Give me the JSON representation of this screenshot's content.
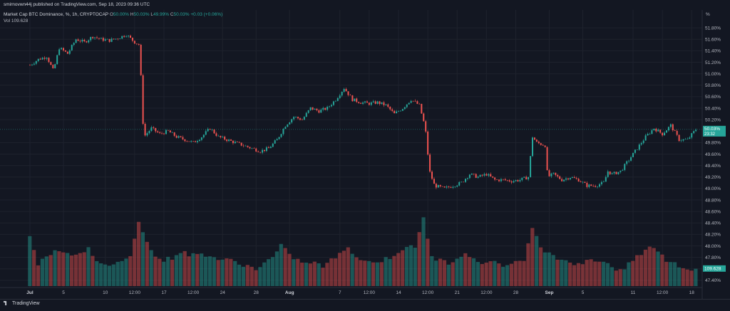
{
  "header": {
    "published": "smirnovwn44j published on TradingView.com, Sep 18, 2023 09:36 UTC"
  },
  "legend": {
    "title": "Market Cap BTC Dominance, %, 1h, CRYPTOCAP",
    "o_label": "O",
    "o_value": "50.00%",
    "h_label": "H",
    "h_value": "50.03%",
    "l_label": "L",
    "l_value": "49.99%",
    "c_label": "C",
    "c_value": "50.03%",
    "change": "+0.03 (+0.06%)",
    "vol_label": "Vol",
    "vol_value": "109.628"
  },
  "price_axis": {
    "unit": "%"
  },
  "footer": {
    "brand": "TradingView"
  },
  "colors": {
    "up": "#26a69a",
    "down": "#ef5350",
    "background": "#131722",
    "grid": "#1e222d",
    "axis_text": "#b2b5be"
  },
  "chart_data": {
    "type": "line",
    "title": "Market Cap BTC Dominance, %, 1h, CRYPTOCAP",
    "xlabel": "",
    "ylabel": "%",
    "ylim": [
      47.3,
      51.9
    ],
    "yticks": [
      "51.80%",
      "51.60%",
      "51.40%",
      "51.20%",
      "51.00%",
      "50.80%",
      "50.60%",
      "50.40%",
      "50.20%",
      "49.80%",
      "49.60%",
      "49.40%",
      "49.20%",
      "49.00%",
      "48.80%",
      "48.60%",
      "48.40%",
      "48.20%",
      "48.00%",
      "47.80%",
      "47.60%",
      "47.40%"
    ],
    "xticks": [
      {
        "label": "Jul",
        "day": 0,
        "bold": true
      },
      {
        "label": "5",
        "day": 4
      },
      {
        "label": "10",
        "day": 9
      },
      {
        "label": "12:00",
        "day": 12.5
      },
      {
        "label": "17",
        "day": 16
      },
      {
        "label": "12:00",
        "day": 19.5
      },
      {
        "label": "24",
        "day": 23
      },
      {
        "label": "28",
        "day": 27
      },
      {
        "label": "Aug",
        "day": 31,
        "bold": true
      },
      {
        "label": "7",
        "day": 37
      },
      {
        "label": "12:00",
        "day": 40.5
      },
      {
        "label": "14",
        "day": 44
      },
      {
        "label": "12:00",
        "day": 47.5
      },
      {
        "label": "21",
        "day": 51
      },
      {
        "label": "12:00",
        "day": 54.5
      },
      {
        "label": "28",
        "day": 58
      },
      {
        "label": "Sep",
        "day": 62,
        "bold": true
      },
      {
        "label": "5",
        "day": 66
      },
      {
        "label": "11",
        "day": 72
      },
      {
        "label": "12:00",
        "day": 75.5
      },
      {
        "label": "18",
        "day": 79
      }
    ],
    "last_price": "50.03%",
    "last_price_countdown": "23:32",
    "last_volume": "109.628",
    "price_anchors": [
      [
        0,
        51.15
      ],
      [
        1,
        51.25
      ],
      [
        2,
        51.3
      ],
      [
        2.8,
        51.05
      ],
      [
        3.5,
        51.45
      ],
      [
        4.5,
        51.35
      ],
      [
        5.5,
        51.6
      ],
      [
        6.5,
        51.55
      ],
      [
        7.5,
        51.65
      ],
      [
        8.5,
        51.6
      ],
      [
        9.5,
        51.58
      ],
      [
        10.5,
        51.62
      ],
      [
        11.5,
        51.68
      ],
      [
        12.5,
        51.55
      ],
      [
        13.1,
        51.5
      ],
      [
        13.4,
        50.4
      ],
      [
        13.6,
        49.9
      ],
      [
        14.5,
        50.05
      ],
      [
        15.5,
        49.95
      ],
      [
        16.5,
        50.0
      ],
      [
        17.5,
        49.9
      ],
      [
        18.5,
        49.85
      ],
      [
        19.5,
        49.8
      ],
      [
        20.5,
        49.9
      ],
      [
        21.5,
        50.05
      ],
      [
        22.5,
        49.9
      ],
      [
        23.5,
        49.85
      ],
      [
        24.5,
        49.8
      ],
      [
        25.5,
        49.75
      ],
      [
        26.5,
        49.7
      ],
      [
        27.5,
        49.65
      ],
      [
        28.5,
        49.7
      ],
      [
        29.5,
        49.85
      ],
      [
        30.5,
        50.1
      ],
      [
        31.5,
        50.25
      ],
      [
        32.5,
        50.2
      ],
      [
        33.5,
        50.4
      ],
      [
        34.5,
        50.35
      ],
      [
        35.5,
        50.4
      ],
      [
        36.5,
        50.55
      ],
      [
        37.5,
        50.75
      ],
      [
        38.5,
        50.55
      ],
      [
        39.5,
        50.5
      ],
      [
        40.5,
        50.48
      ],
      [
        41.5,
        50.5
      ],
      [
        42.5,
        50.45
      ],
      [
        43.5,
        50.3
      ],
      [
        44.5,
        50.4
      ],
      [
        45.5,
        50.55
      ],
      [
        46.5,
        50.45
      ],
      [
        47.2,
        50.05
      ],
      [
        47.7,
        49.3
      ],
      [
        48.3,
        49.05
      ],
      [
        49.5,
        49.0
      ],
      [
        50.5,
        49.05
      ],
      [
        51.5,
        49.1
      ],
      [
        52.5,
        49.25
      ],
      [
        53.5,
        49.2
      ],
      [
        54.5,
        49.25
      ],
      [
        55.5,
        49.15
      ],
      [
        56.5,
        49.15
      ],
      [
        57.5,
        49.13
      ],
      [
        58.5,
        49.15
      ],
      [
        59.5,
        49.2
      ],
      [
        60.0,
        49.9
      ],
      [
        60.5,
        49.8
      ],
      [
        61.5,
        49.75
      ],
      [
        61.8,
        49.2
      ],
      [
        62.5,
        49.25
      ],
      [
        63.5,
        49.15
      ],
      [
        64.5,
        49.2
      ],
      [
        65.5,
        49.15
      ],
      [
        66.5,
        49.05
      ],
      [
        67.5,
        49.05
      ],
      [
        68.5,
        49.1
      ],
      [
        69.0,
        49.3
      ],
      [
        69.5,
        49.25
      ],
      [
        70.5,
        49.3
      ],
      [
        71.5,
        49.5
      ],
      [
        72.5,
        49.7
      ],
      [
        73.5,
        49.9
      ],
      [
        74.5,
        50.05
      ],
      [
        75.5,
        49.95
      ],
      [
        76.5,
        50.1
      ],
      [
        77.5,
        49.85
      ],
      [
        78.5,
        49.85
      ],
      [
        79.5,
        50.03
      ]
    ],
    "volume_anchors": [
      [
        0,
        48.2
      ],
      [
        1,
        47.7
      ],
      [
        2,
        47.8
      ],
      [
        3,
        47.95
      ],
      [
        4,
        47.9
      ],
      [
        5,
        47.85
      ],
      [
        6,
        47.9
      ],
      [
        7,
        47.95
      ],
      [
        8,
        47.7
      ],
      [
        9,
        47.65
      ],
      [
        10,
        47.7
      ],
      [
        11,
        47.75
      ],
      [
        12,
        47.8
      ],
      [
        13,
        48.45
      ],
      [
        14,
        48.1
      ],
      [
        15,
        47.8
      ],
      [
        16,
        47.75
      ],
      [
        17,
        47.8
      ],
      [
        18,
        47.9
      ],
      [
        19,
        47.85
      ],
      [
        20,
        47.85
      ],
      [
        21,
        47.85
      ],
      [
        22,
        47.8
      ],
      [
        23,
        47.75
      ],
      [
        24,
        47.75
      ],
      [
        25,
        47.7
      ],
      [
        26,
        47.65
      ],
      [
        27,
        47.6
      ],
      [
        28,
        47.7
      ],
      [
        29,
        47.8
      ],
      [
        30,
        48.0
      ],
      [
        31,
        47.85
      ],
      [
        32,
        47.75
      ],
      [
        33,
        47.7
      ],
      [
        34,
        47.7
      ],
      [
        35,
        47.65
      ],
      [
        36,
        47.75
      ],
      [
        37,
        47.85
      ],
      [
        38,
        48.0
      ],
      [
        39,
        47.8
      ],
      [
        40,
        47.75
      ],
      [
        41,
        47.7
      ],
      [
        42,
        47.75
      ],
      [
        43,
        47.8
      ],
      [
        44,
        47.9
      ],
      [
        45,
        48.0
      ],
      [
        46,
        47.95
      ],
      [
        47,
        48.5
      ],
      [
        48,
        47.8
      ],
      [
        49,
        47.75
      ],
      [
        50,
        47.7
      ],
      [
        51,
        47.8
      ],
      [
        52,
        47.9
      ],
      [
        53,
        47.75
      ],
      [
        54,
        47.7
      ],
      [
        55,
        47.75
      ],
      [
        56,
        47.7
      ],
      [
        57,
        47.65
      ],
      [
        58,
        47.7
      ],
      [
        59,
        47.75
      ],
      [
        60,
        48.35
      ],
      [
        61,
        47.95
      ],
      [
        62,
        47.9
      ],
      [
        63,
        47.8
      ],
      [
        64,
        47.75
      ],
      [
        65,
        47.7
      ],
      [
        66,
        47.7
      ],
      [
        67,
        47.75
      ],
      [
        68,
        47.75
      ],
      [
        69,
        47.7
      ],
      [
        70,
        47.6
      ],
      [
        71,
        47.6
      ],
      [
        72,
        47.75
      ],
      [
        73,
        47.85
      ],
      [
        74,
        48.0
      ],
      [
        75,
        47.9
      ],
      [
        76,
        47.75
      ],
      [
        77,
        47.7
      ],
      [
        78,
        47.6
      ],
      [
        79,
        47.6
      ]
    ]
  }
}
